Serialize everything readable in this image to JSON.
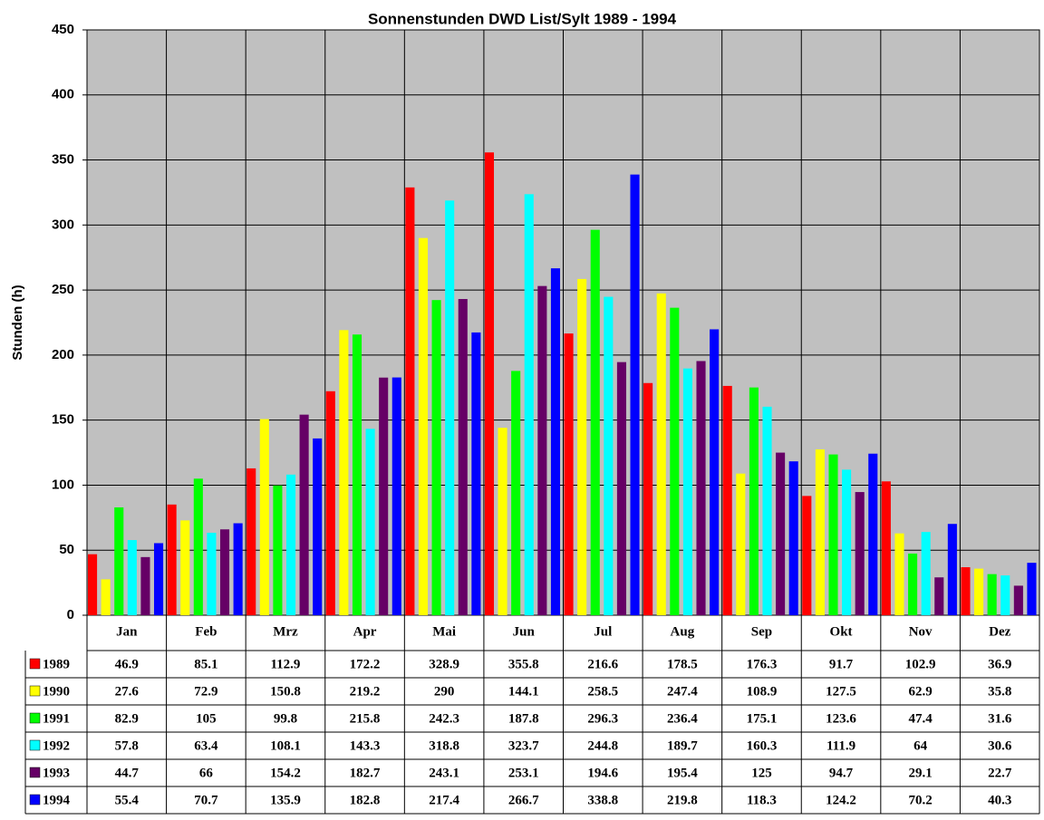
{
  "chart_data": {
    "type": "bar",
    "title": "Sonnenstunden DWD List/Sylt 1989 - 1994",
    "y_label": "Stunden (h)",
    "categories": [
      "Jan",
      "Feb",
      "Mrz",
      "Apr",
      "Mai",
      "Jun",
      "Jul",
      "Aug",
      "Sep",
      "Okt",
      "Nov",
      "Dez"
    ],
    "ylim": [
      0,
      450
    ],
    "yticks": [
      0,
      50,
      100,
      150,
      200,
      250,
      300,
      350,
      400,
      450
    ],
    "grid": true,
    "series": [
      {
        "name": "1989",
        "color": "#ff0000",
        "values": [
          46.9,
          85.1,
          112.9,
          172.2,
          328.9,
          355.8,
          216.6,
          178.5,
          176.3,
          91.7,
          102.9,
          36.9
        ]
      },
      {
        "name": "1990",
        "color": "#ffff00",
        "values": [
          27.6,
          72.9,
          150.8,
          219.2,
          290,
          144.1,
          258.5,
          247.4,
          108.9,
          127.5,
          62.9,
          35.8
        ]
      },
      {
        "name": "1991",
        "color": "#00ff00",
        "values": [
          82.9,
          105,
          99.8,
          215.8,
          242.3,
          187.8,
          296.3,
          236.4,
          175.1,
          123.6,
          47.4,
          31.6
        ]
      },
      {
        "name": "1992",
        "color": "#00ffff",
        "values": [
          57.8,
          63.4,
          108.1,
          143.3,
          318.8,
          323.7,
          244.8,
          189.7,
          160.3,
          111.9,
          64,
          30.6
        ]
      },
      {
        "name": "1993",
        "color": "#660066",
        "values": [
          44.7,
          66,
          154.2,
          182.7,
          243.1,
          253.1,
          194.6,
          195.4,
          125,
          94.7,
          29.1,
          22.7
        ]
      },
      {
        "name": "1994",
        "color": "#0000ff",
        "values": [
          55.4,
          70.7,
          135.9,
          182.8,
          217.4,
          266.7,
          338.8,
          219.8,
          118.3,
          124.2,
          70.2,
          40.3
        ]
      }
    ]
  }
}
